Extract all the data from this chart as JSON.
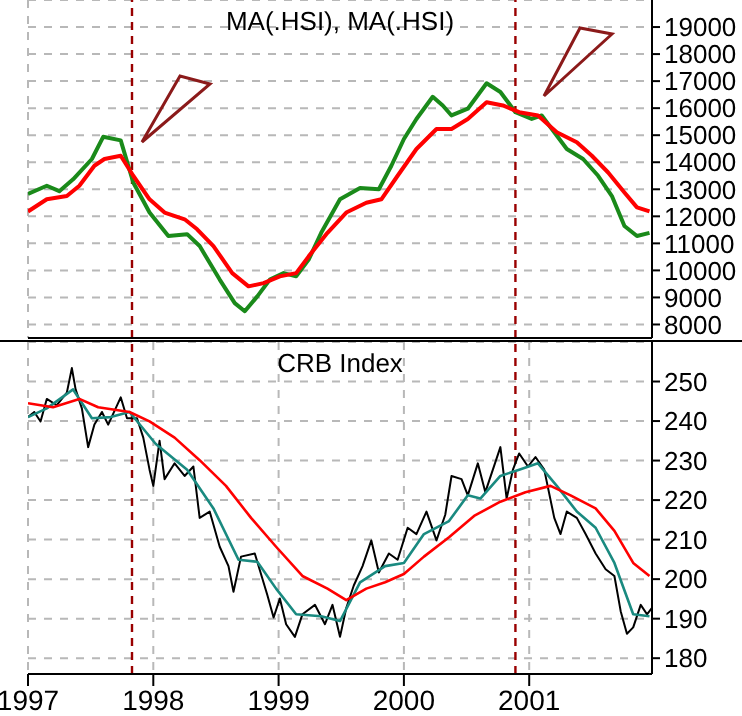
{
  "chart_data": [
    {
      "type": "line",
      "title": "MA(.HSI), MA(.HSI)",
      "xlim": [
        1997,
        2001.98
      ],
      "xticks": [
        1997,
        1998,
        1999,
        2000,
        2001
      ],
      "ylim": [
        7500,
        20000
      ],
      "yticks": [
        8000,
        9000,
        10000,
        11000,
        12000,
        13000,
        14000,
        15000,
        16000,
        17000,
        18000,
        19000
      ],
      "grid": true,
      "tick_labels": "y",
      "legend": false,
      "line_style": "solid",
      "marker": "none",
      "ref_lines": [
        {
          "axis": "x",
          "value": 1997.83,
          "color": "#990000",
          "line_style": "dashed"
        },
        {
          "axis": "x",
          "value": 2000.89,
          "color": "#990000",
          "line_style": "dashed"
        }
      ],
      "series": [
        {
          "color": "#1a8a1a",
          "x": [
            1997.0,
            1997.15,
            1997.25,
            1997.36,
            1997.51,
            1997.6,
            1997.74,
            1997.84,
            1997.97,
            1998.12,
            1998.27,
            1998.37,
            1998.53,
            1998.65,
            1998.73,
            1998.83,
            1998.93,
            1999.04,
            1999.14,
            1999.24,
            1999.34,
            1999.49,
            1999.65,
            1999.8,
            1999.9,
            2000.0,
            2000.1,
            2000.23,
            2000.31,
            2000.38,
            2000.51,
            2000.66,
            2000.77,
            2000.89,
            2001.02,
            2001.1,
            2001.2,
            2001.3,
            2001.43,
            2001.55,
            2001.66,
            2001.76,
            2001.86,
            2001.96
          ],
          "values": [
            12830,
            13130,
            12930,
            13370,
            14120,
            14940,
            14810,
            13250,
            12140,
            11270,
            11340,
            10900,
            9660,
            8790,
            8490,
            9040,
            9660,
            9900,
            9780,
            10400,
            11390,
            12630,
            13050,
            13000,
            13870,
            14860,
            15600,
            16420,
            16100,
            15730,
            15980,
            16920,
            16600,
            15850,
            15600,
            15730,
            15110,
            14490,
            14120,
            13500,
            12750,
            11640,
            11270,
            11390
          ]
        },
        {
          "color": "#ff0000",
          "x": [
            1997.0,
            1997.15,
            1997.31,
            1997.41,
            1997.53,
            1997.61,
            1997.74,
            1997.84,
            1997.97,
            1998.09,
            1998.25,
            1998.35,
            1998.48,
            1998.63,
            1998.76,
            1998.88,
            1999.01,
            1999.14,
            1999.24,
            1999.39,
            1999.54,
            1999.7,
            1999.82,
            1999.95,
            2000.1,
            2000.26,
            2000.38,
            2000.51,
            2000.66,
            2000.79,
            2000.92,
            2001.07,
            2001.22,
            2001.38,
            2001.5,
            2001.63,
            2001.76,
            2001.86,
            2001.96
          ],
          "values": [
            12180,
            12630,
            12750,
            13130,
            13870,
            14120,
            14240,
            13500,
            12630,
            12140,
            11890,
            11520,
            10900,
            9900,
            9410,
            9530,
            9780,
            9900,
            10520,
            11390,
            12140,
            12500,
            12630,
            13500,
            14490,
            15230,
            15230,
            15600,
            16220,
            16100,
            15850,
            15730,
            15110,
            14740,
            14240,
            13620,
            12880,
            12330,
            12180
          ]
        }
      ]
    },
    {
      "type": "line",
      "title": "CRB Index",
      "xlim": [
        1997,
        2001.98
      ],
      "xticks": [
        1997,
        1998,
        1999,
        2000,
        2001
      ],
      "ylim": [
        176,
        260
      ],
      "yticks": [
        180,
        190,
        200,
        210,
        220,
        230,
        240,
        250
      ],
      "grid": true,
      "legend": false,
      "line_style": "solid",
      "marker": "none",
      "ref_lines": [
        {
          "axis": "x",
          "value": 1997.83,
          "color": "#990000",
          "line_style": "dashed"
        },
        {
          "axis": "x",
          "value": 2000.89,
          "color": "#990000",
          "line_style": "dashed"
        }
      ],
      "series": [
        {
          "color": "#000000",
          "x": [
            1997.0,
            1997.05,
            1997.1,
            1997.15,
            1997.23,
            1997.31,
            1997.35,
            1997.38,
            1997.43,
            1997.48,
            1997.53,
            1997.59,
            1997.64,
            1997.74,
            1997.79,
            1997.87,
            1997.92,
            1997.97,
            1998.0,
            1998.05,
            1998.09,
            1998.17,
            1998.25,
            1998.32,
            1998.37,
            1998.45,
            1998.53,
            1998.6,
            1998.64,
            1998.7,
            1998.81,
            1998.91,
            1998.96,
            1999.01,
            1999.06,
            1999.13,
            1999.19,
            1999.29,
            1999.37,
            1999.43,
            1999.49,
            1999.54,
            1999.6,
            1999.67,
            1999.74,
            1999.8,
            1999.88,
            1999.95,
            2000.03,
            2000.1,
            2000.18,
            2000.26,
            2000.33,
            2000.38,
            2000.46,
            2000.51,
            2000.59,
            2000.65,
            2000.71,
            2000.77,
            2000.82,
            2000.87,
            2000.92,
            2000.99,
            2001.05,
            2001.12,
            2001.2,
            2001.25,
            2001.3,
            2001.38,
            2001.45,
            2001.53,
            2001.61,
            2001.68,
            2001.73,
            2001.78,
            2001.83,
            2001.89,
            2001.94,
            2001.98
          ],
          "values": [
            241,
            242.3,
            239.9,
            245.6,
            244,
            247.2,
            253.4,
            248,
            243.2,
            233.4,
            239.1,
            242.3,
            239.1,
            246,
            240.7,
            240.7,
            235.8,
            227.7,
            223.6,
            235,
            225.3,
            229.3,
            226.1,
            228.5,
            215.5,
            217.1,
            208.2,
            203.3,
            196.8,
            205.7,
            206.5,
            196,
            190.3,
            195.1,
            188.6,
            185.4,
            191.1,
            193.5,
            188.6,
            193.5,
            185.4,
            192.7,
            198.4,
            203.3,
            209.8,
            201.7,
            206.5,
            204.9,
            213,
            211.4,
            217.1,
            209.8,
            216.3,
            226.1,
            225.3,
            221.2,
            229.3,
            222,
            227.7,
            233.4,
            220.4,
            227.7,
            231.8,
            228.5,
            230.9,
            227.7,
            215.5,
            211.4,
            217.1,
            215.5,
            211.4,
            206.5,
            202.5,
            200.8,
            191.9,
            186.2,
            187.8,
            193.5,
            191.1,
            192.7
          ]
        },
        {
          "color": "#1a8a80",
          "x": [
            1997.0,
            1997.15,
            1997.36,
            1997.51,
            1997.66,
            1997.81,
            1998.02,
            1998.27,
            1998.48,
            1998.68,
            1998.83,
            1998.98,
            1999.14,
            1999.34,
            1999.49,
            1999.65,
            1999.85,
            2000.0,
            2000.16,
            2000.36,
            2000.51,
            2000.61,
            2000.77,
            2000.92,
            2001.07,
            2001.22,
            2001.38,
            2001.53,
            2001.68,
            2001.83,
            2001.96
          ],
          "values": [
            241,
            243.2,
            248,
            240.7,
            241,
            242.3,
            234.2,
            227.7,
            217.9,
            204.9,
            204.4,
            197.6,
            191.1,
            190.6,
            189.4,
            199.2,
            203.3,
            204.1,
            211.4,
            214.7,
            221.2,
            220.4,
            226.1,
            227.7,
            229.3,
            223.6,
            217.1,
            213,
            204.1,
            191.1,
            190.6
          ]
        },
        {
          "color": "#ff0000",
          "x": [
            1997.0,
            1997.2,
            1997.41,
            1997.56,
            1997.81,
            1997.97,
            1998.17,
            1998.37,
            1998.58,
            1998.78,
            1998.98,
            1999.19,
            1999.39,
            1999.54,
            1999.7,
            1999.85,
            2000.0,
            2000.16,
            2000.36,
            2000.56,
            2000.77,
            2000.97,
            2001.17,
            2001.33,
            2001.53,
            2001.68,
            2001.83,
            2001.96
          ],
          "values": [
            244.5,
            243.5,
            245.6,
            243.5,
            242.3,
            239.9,
            235.8,
            230.1,
            223.6,
            215.5,
            208.2,
            200.8,
            197.6,
            194.7,
            197.6,
            199.2,
            201.3,
            205.7,
            210.6,
            216,
            219.6,
            222,
            223.6,
            221.2,
            217.9,
            212.2,
            204.1,
            200.8
          ]
        }
      ]
    }
  ]
}
